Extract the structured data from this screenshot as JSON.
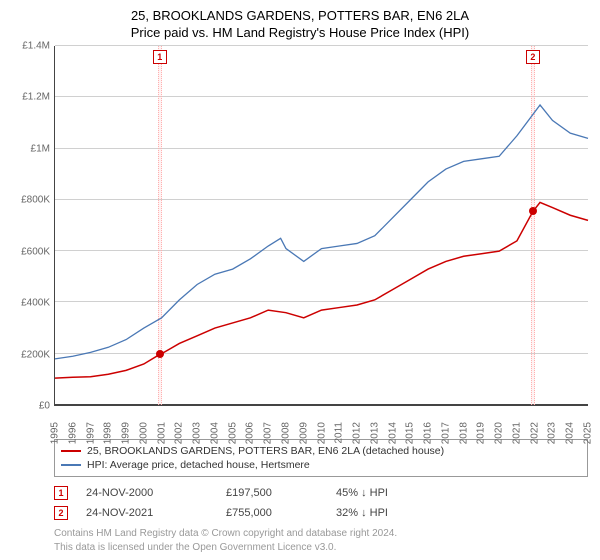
{
  "title_line1": "25, BROOKLANDS GARDENS, POTTERS BAR, EN6 2LA",
  "title_line2": "Price paid vs. HM Land Registry's House Price Index (HPI)",
  "chart": {
    "type": "line",
    "background": "#ffffff",
    "grid_color": "#d0d0d0",
    "axis_color": "#444444",
    "label_color": "#666666",
    "label_fontsize": 10,
    "ylim": [
      0,
      1400000
    ],
    "ytick_step": 200000,
    "yticks": [
      "£0",
      "£200K",
      "£400K",
      "£600K",
      "£800K",
      "£1M",
      "£1.2M",
      "£1.4M"
    ],
    "xlim": [
      1995,
      2025
    ],
    "xticks": [
      1995,
      1996,
      1997,
      1998,
      1999,
      2000,
      2001,
      2002,
      2003,
      2004,
      2005,
      2006,
      2007,
      2008,
      2009,
      2010,
      2011,
      2012,
      2013,
      2014,
      2015,
      2016,
      2017,
      2018,
      2019,
      2020,
      2021,
      2022,
      2023,
      2024,
      2025
    ],
    "band_color": "#ffb0b0",
    "band1_x": 2000.9,
    "band2_x": 2021.9,
    "marker1_label": "1",
    "marker2_label": "2",
    "marker_border": "#cc0000",
    "marker_text_color": "#cc0000",
    "series": [
      {
        "name": "price_paid",
        "color": "#cc0000",
        "width": 1.5,
        "points": [
          [
            1995,
            105000
          ],
          [
            1996,
            108000
          ],
          [
            1997,
            110000
          ],
          [
            1998,
            120000
          ],
          [
            1999,
            135000
          ],
          [
            2000,
            160000
          ],
          [
            2000.9,
            197500
          ],
          [
            2001,
            200000
          ],
          [
            2002,
            240000
          ],
          [
            2003,
            270000
          ],
          [
            2004,
            300000
          ],
          [
            2005,
            320000
          ],
          [
            2006,
            340000
          ],
          [
            2007,
            370000
          ],
          [
            2008,
            360000
          ],
          [
            2009,
            340000
          ],
          [
            2010,
            370000
          ],
          [
            2011,
            380000
          ],
          [
            2012,
            390000
          ],
          [
            2013,
            410000
          ],
          [
            2014,
            450000
          ],
          [
            2015,
            490000
          ],
          [
            2016,
            530000
          ],
          [
            2017,
            560000
          ],
          [
            2018,
            580000
          ],
          [
            2019,
            590000
          ],
          [
            2020,
            600000
          ],
          [
            2021,
            640000
          ],
          [
            2021.9,
            755000
          ],
          [
            2022.3,
            790000
          ],
          [
            2023,
            770000
          ],
          [
            2024,
            740000
          ],
          [
            2025,
            720000
          ]
        ],
        "dots": [
          {
            "x": 2000.9,
            "y": 197500
          },
          {
            "x": 2021.9,
            "y": 755000
          }
        ]
      },
      {
        "name": "hpi",
        "color": "#4a78b5",
        "width": 1.3,
        "points": [
          [
            1995,
            180000
          ],
          [
            1996,
            190000
          ],
          [
            1997,
            205000
          ],
          [
            1998,
            225000
          ],
          [
            1999,
            255000
          ],
          [
            2000,
            300000
          ],
          [
            2001,
            340000
          ],
          [
            2002,
            410000
          ],
          [
            2003,
            470000
          ],
          [
            2004,
            510000
          ],
          [
            2005,
            530000
          ],
          [
            2006,
            570000
          ],
          [
            2007,
            620000
          ],
          [
            2007.7,
            650000
          ],
          [
            2008,
            610000
          ],
          [
            2009,
            560000
          ],
          [
            2010,
            610000
          ],
          [
            2011,
            620000
          ],
          [
            2012,
            630000
          ],
          [
            2013,
            660000
          ],
          [
            2014,
            730000
          ],
          [
            2015,
            800000
          ],
          [
            2016,
            870000
          ],
          [
            2017,
            920000
          ],
          [
            2018,
            950000
          ],
          [
            2019,
            960000
          ],
          [
            2020,
            970000
          ],
          [
            2021,
            1050000
          ],
          [
            2022.3,
            1170000
          ],
          [
            2023,
            1110000
          ],
          [
            2024,
            1060000
          ],
          [
            2025,
            1040000
          ]
        ]
      }
    ]
  },
  "legend": {
    "items": [
      {
        "color": "#cc0000",
        "label": "25, BROOKLANDS GARDENS, POTTERS BAR, EN6 2LA (detached house)"
      },
      {
        "color": "#4a78b5",
        "label": "HPI: Average price, detached house, Hertsmere"
      }
    ]
  },
  "annotations": [
    {
      "num": "1",
      "color": "#cc0000",
      "date": "24-NOV-2000",
      "price": "£197,500",
      "pct": "45% ↓ HPI"
    },
    {
      "num": "2",
      "color": "#cc0000",
      "date": "24-NOV-2021",
      "price": "£755,000",
      "pct": "32% ↓ HPI"
    }
  ],
  "footer1": "Contains HM Land Registry data © Crown copyright and database right 2024.",
  "footer2": "This data is licensed under the Open Government Licence v3.0."
}
